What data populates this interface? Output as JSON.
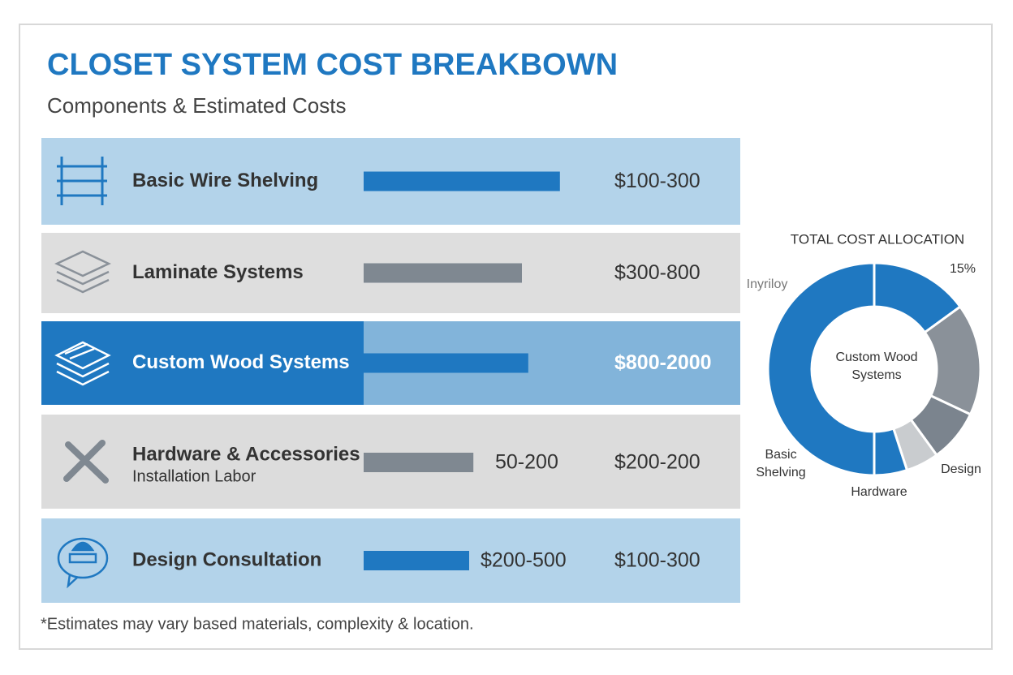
{
  "header": {
    "title": "CLOSET SYSTEM COST BREAKBOWN",
    "subtitle": "Components & Estimated Costs"
  },
  "rows": {
    "xlim": [
      0,
      100
    ],
    "items": [
      {
        "label": "Basic Wire Shelving",
        "value": 93,
        "color": "#1f78c1",
        "background": "#b3d3ea",
        "cost": "$100-300"
      },
      {
        "label": "Laminate Systems",
        "value": 75,
        "color": "#7f8891",
        "background": "#dedede",
        "cost": "$300-800"
      },
      {
        "label": "Custom Wood Systems",
        "value": 78,
        "color": "#1f78c1",
        "background": "#82b4da",
        "highlight": true,
        "cost": "$800-2000"
      },
      {
        "label": "Hardware & Accessories",
        "sublabel": "Installation Labor",
        "value": 52,
        "color": "#7f8891",
        "background": "#dcdcdc",
        "mid": "50-200",
        "cost": "$200-200"
      },
      {
        "label": "Design Consultation",
        "value": 50,
        "color": "#1f78c1",
        "background": "#b3d3ea",
        "mid": "$200-500",
        "cost": "$100-300"
      }
    ]
  },
  "donut": {
    "title": "TOTAL COST ALLOCATION",
    "center_label": "Custom Wood Systems",
    "segments": [
      {
        "value": 15,
        "value_label": "15%",
        "color": "#1f78c1"
      },
      {
        "value": 17,
        "color": "#8a9199"
      },
      {
        "value": 8,
        "color": "#7b848e"
      },
      {
        "value": 5,
        "color": "#c9cccf"
      },
      {
        "value": 5,
        "color": "#1f78c1"
      },
      {
        "value": 50,
        "color": "#1f78c1"
      }
    ],
    "labels": [
      "Inyriloy",
      "Basic Shelving",
      "Hardware",
      "Design"
    ]
  },
  "footnote": "*Estimates may vary based materials, complexity & location."
}
